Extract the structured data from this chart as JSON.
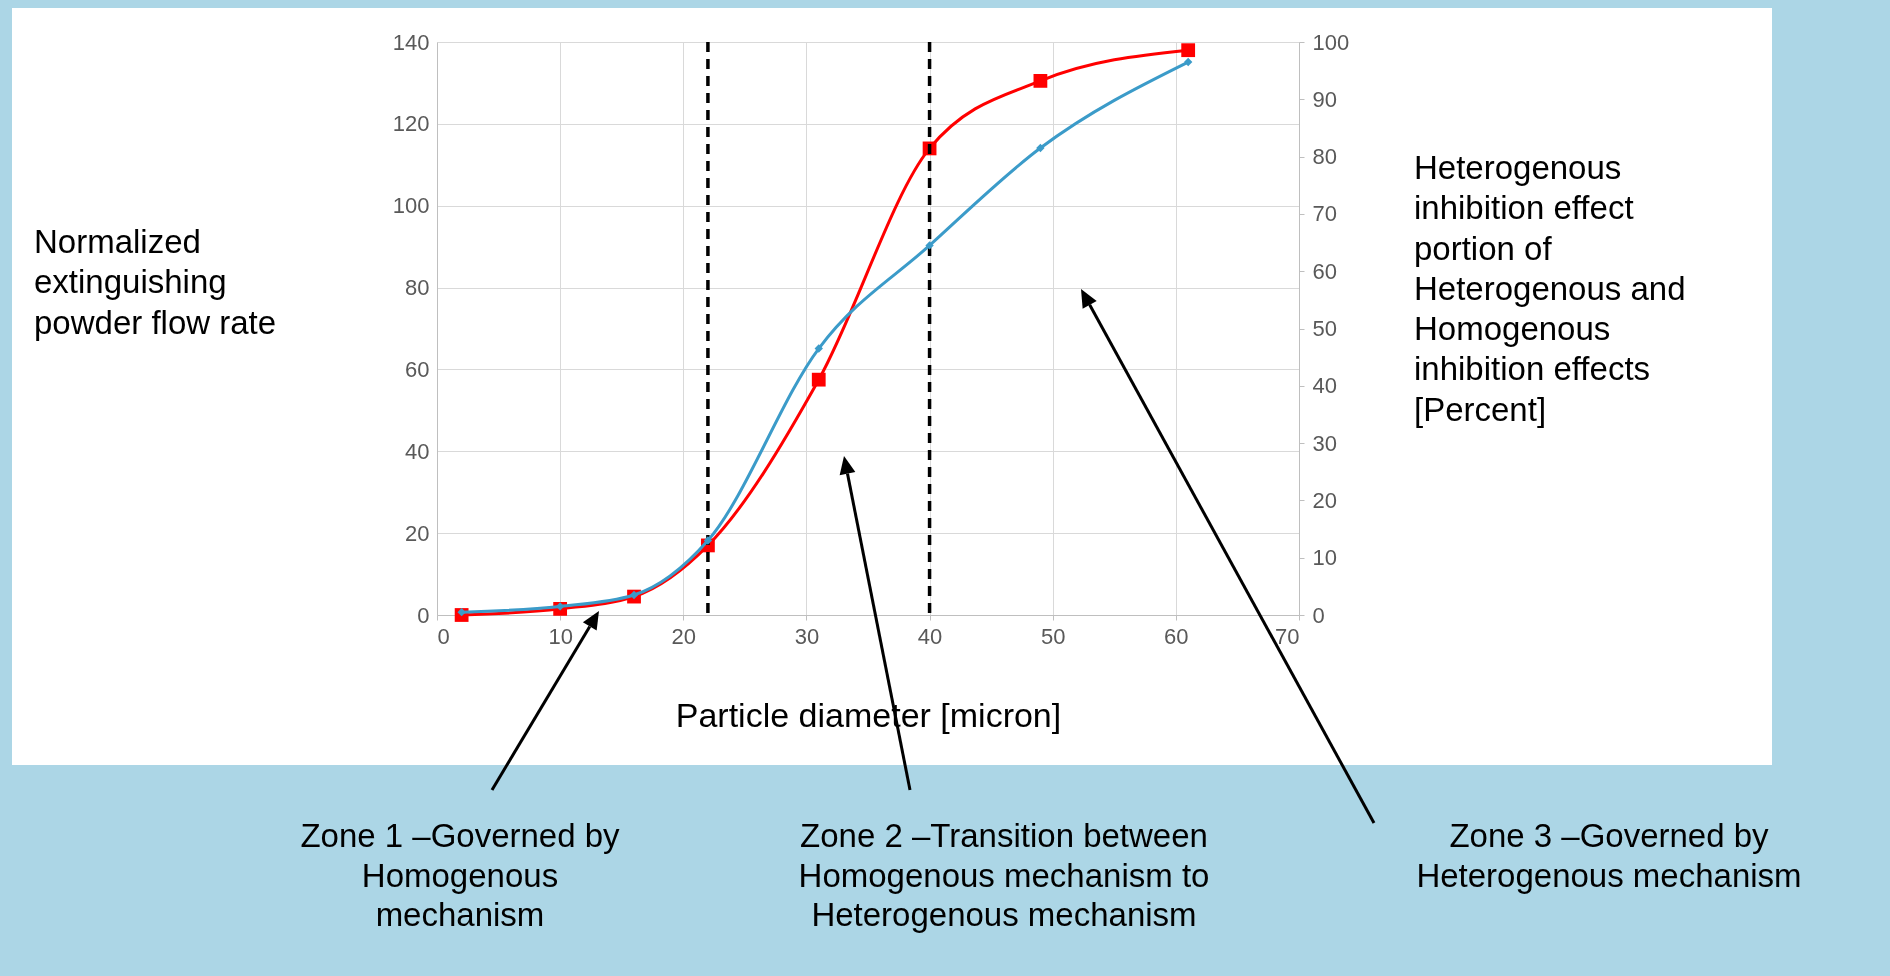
{
  "chart_data": {
    "type": "line",
    "xlabel": "Particle diameter [micron]",
    "ylabel": "Normalized extinguishing powder flow rate",
    "y2label": "Heterogenous inhibition effect portion of Heterogenous and Homogenous inhibition effects [Percent]",
    "x": [
      2,
      10,
      16,
      22,
      31,
      40,
      49,
      61
    ],
    "series": [
      {
        "color": "#ff0000",
        "marker": "square",
        "values": [
          0,
          1.5,
          4.5,
          17,
          57.5,
          114,
          130.5,
          138
        ]
      },
      {
        "color": "#3b9bc9",
        "marker": "diamond",
        "axis": "y2",
        "values": [
          0.5,
          1.5,
          3.5,
          13,
          46.5,
          64.5,
          81.5,
          96.5
        ]
      }
    ],
    "xlim": [
      0,
      70
    ],
    "xticks": [
      0,
      10,
      20,
      30,
      40,
      50,
      60,
      70
    ],
    "ylim": [
      0,
      140
    ],
    "yticks": [
      0,
      20,
      40,
      60,
      80,
      100,
      120,
      140
    ],
    "y2lim": [
      0,
      100
    ],
    "y2ticks": [
      0,
      10,
      20,
      30,
      40,
      50,
      60,
      70,
      80,
      90,
      100
    ],
    "ref_lines": [
      {
        "axis": "x",
        "value": 22,
        "line_style": "dashed",
        "color": "#000000"
      },
      {
        "axis": "x",
        "value": 40,
        "line_style": "dashed",
        "color": "#000000"
      }
    ],
    "annotations": [
      "Zone 1 –Governed by Homogenous mechanism",
      "Zone 2 –Transition between Homogenous mechanism to Heterogenous mechanism",
      "Zone 3 –Governed by Heterogenous mechanism"
    ],
    "grid": true
  }
}
